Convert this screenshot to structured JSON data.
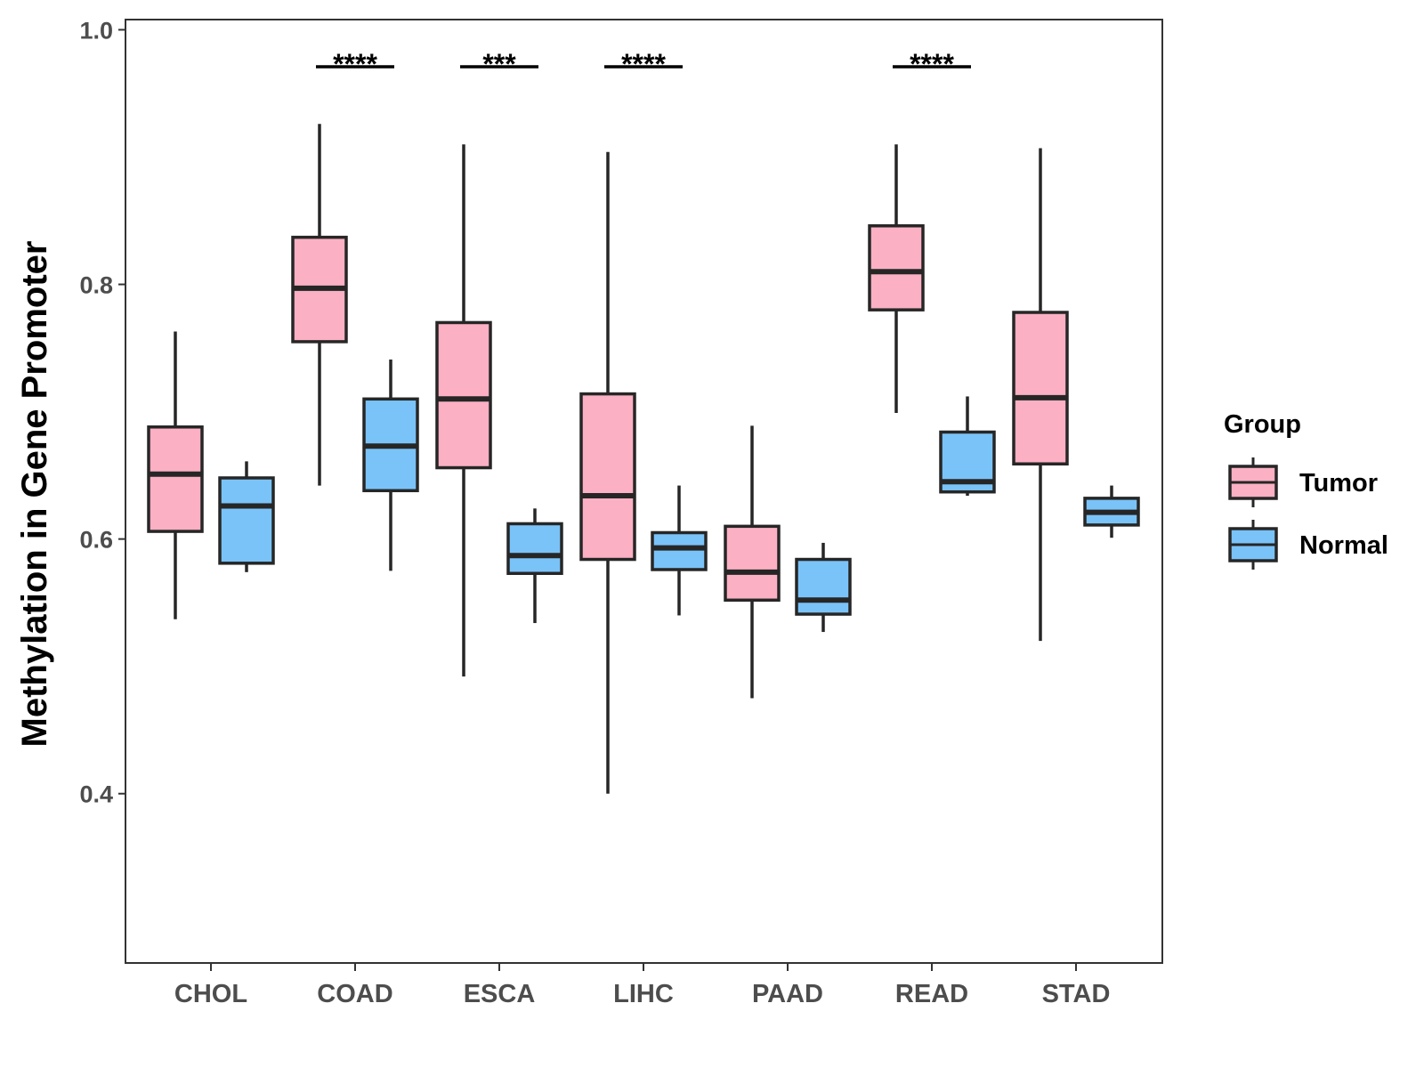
{
  "chart_data": {
    "type": "boxplot",
    "title": "",
    "xlabel": "",
    "ylabel": "Methylation in Gene Promoter",
    "ylim": [
      0.267,
      1.008
    ],
    "yticks": [
      "0.4",
      "0.6",
      "0.8",
      "1.0"
    ],
    "categories": [
      "CHOL",
      "COAD",
      "ESCA",
      "LIHC",
      "PAAD",
      "READ",
      "STAD"
    ],
    "legend": {
      "title": "Group",
      "position": "right",
      "entries": [
        {
          "name": "Tumor",
          "color": "#FBB0C3"
        },
        {
          "name": "Normal",
          "color": "#7AC3F8"
        }
      ]
    },
    "series": [
      {
        "name": "Tumor",
        "color": "#FBB0C3",
        "boxes": [
          {
            "whisker_low": 0.537,
            "q1": 0.606,
            "median": 0.651,
            "q3": 0.688,
            "whisker_high": 0.763
          },
          {
            "whisker_low": 0.642,
            "q1": 0.755,
            "median": 0.797,
            "q3": 0.837,
            "whisker_high": 0.926
          },
          {
            "whisker_low": 0.492,
            "q1": 0.656,
            "median": 0.71,
            "q3": 0.77,
            "whisker_high": 0.91
          },
          {
            "whisker_low": 0.4,
            "q1": 0.584,
            "median": 0.634,
            "q3": 0.714,
            "whisker_high": 0.904
          },
          {
            "whisker_low": 0.475,
            "q1": 0.552,
            "median": 0.574,
            "q3": 0.61,
            "whisker_high": 0.689
          },
          {
            "whisker_low": 0.699,
            "q1": 0.78,
            "median": 0.81,
            "q3": 0.846,
            "whisker_high": 0.91
          },
          {
            "whisker_low": 0.52,
            "q1": 0.659,
            "median": 0.711,
            "q3": 0.778,
            "whisker_high": 0.907
          }
        ]
      },
      {
        "name": "Normal",
        "color": "#7AC3F8",
        "boxes": [
          {
            "whisker_low": 0.574,
            "q1": 0.581,
            "median": 0.626,
            "q3": 0.648,
            "whisker_high": 0.661
          },
          {
            "whisker_low": 0.575,
            "q1": 0.638,
            "median": 0.673,
            "q3": 0.71,
            "whisker_high": 0.741
          },
          {
            "whisker_low": 0.534,
            "q1": 0.573,
            "median": 0.587,
            "q3": 0.612,
            "whisker_high": 0.624
          },
          {
            "whisker_low": 0.54,
            "q1": 0.576,
            "median": 0.593,
            "q3": 0.605,
            "whisker_high": 0.642
          },
          {
            "whisker_low": 0.527,
            "q1": 0.541,
            "median": 0.552,
            "q3": 0.584,
            "whisker_high": 0.597
          },
          {
            "whisker_low": 0.634,
            "q1": 0.637,
            "median": 0.645,
            "q3": 0.684,
            "whisker_high": 0.712
          },
          {
            "whisker_low": 0.601,
            "q1": 0.611,
            "median": 0.621,
            "q3": 0.632,
            "whisker_high": 0.642
          }
        ]
      }
    ],
    "significance": [
      {
        "category": "COAD",
        "label": "****"
      },
      {
        "category": "ESCA",
        "label": "***"
      },
      {
        "category": "LIHC",
        "label": "****"
      },
      {
        "category": "READ",
        "label": "****"
      }
    ]
  }
}
